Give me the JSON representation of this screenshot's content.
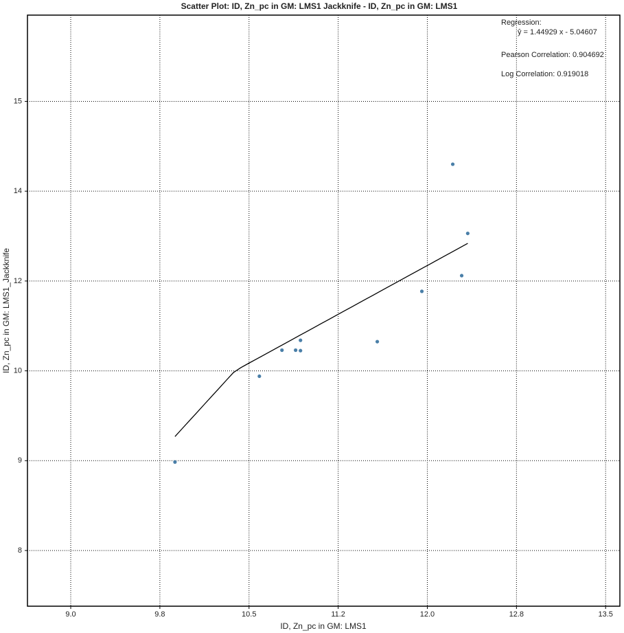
{
  "chart_data": {
    "type": "scatter",
    "title": "Scatter Plot: ID, Zn_pc in GM: LMS1 Jackknife - ID, Zn_pc in GM: LMS1",
    "x_label": "ID, Zn_pc in GM: LMS1",
    "y_label": "ID, Zn_pc in GM: LMS1_Jackknife",
    "annotations": [
      "Regression:",
      "ŷ = 1.44929 x - 5.04607",
      "Pearson Correlation: 0.904692",
      "Log Correlation: 0.919018"
    ],
    "regression": {
      "slope": 1.44929,
      "intercept": -5.04607
    },
    "series": [
      {
        "name": "LMS1",
        "color": "#4a7fa8",
        "x": [
          9.877,
          10.587,
          10.777,
          10.892,
          10.933,
          10.933,
          11.579,
          11.954,
          12.214,
          12.289,
          12.34
        ],
        "values": [
          8.985,
          9.94,
          10.46,
          10.46,
          10.68,
          10.45,
          10.65,
          11.77,
          14.3,
          12.12,
          13.06
        ]
      }
    ],
    "xlim": [
      8.636,
      13.62
    ],
    "xticks": [
      {
        "value": 9.0,
        "label": "9.0"
      },
      {
        "value": 9.75,
        "label": "9.8"
      },
      {
        "value": 10.5,
        "label": "10.5"
      },
      {
        "value": 11.25,
        "label": "11.2"
      },
      {
        "value": 12.0,
        "label": "12.0"
      },
      {
        "value": 12.75,
        "label": "12.8"
      },
      {
        "value": 13.5,
        "label": "13.5"
      }
    ],
    "ylim": [
      7.38,
      15.96
    ],
    "yticks": [
      8,
      9,
      10,
      12,
      14,
      15
    ],
    "grid": true
  }
}
